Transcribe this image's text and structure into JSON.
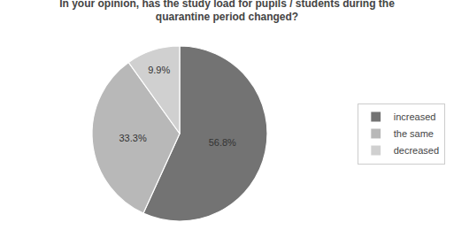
{
  "chart_data": {
    "type": "pie",
    "title": "In your opinion, has the study load for pupils / students during the\nquarantine period changed?",
    "categories": [
      "increased",
      "the same",
      "decreased"
    ],
    "values": [
      56.8,
      33.3,
      9.9
    ],
    "value_labels": [
      "56.8%",
      "33.3%",
      "9.9%"
    ],
    "colors": [
      "#737373",
      "#b8b8b8",
      "#d0d0d0"
    ],
    "data_labels": true,
    "legend": "right"
  }
}
